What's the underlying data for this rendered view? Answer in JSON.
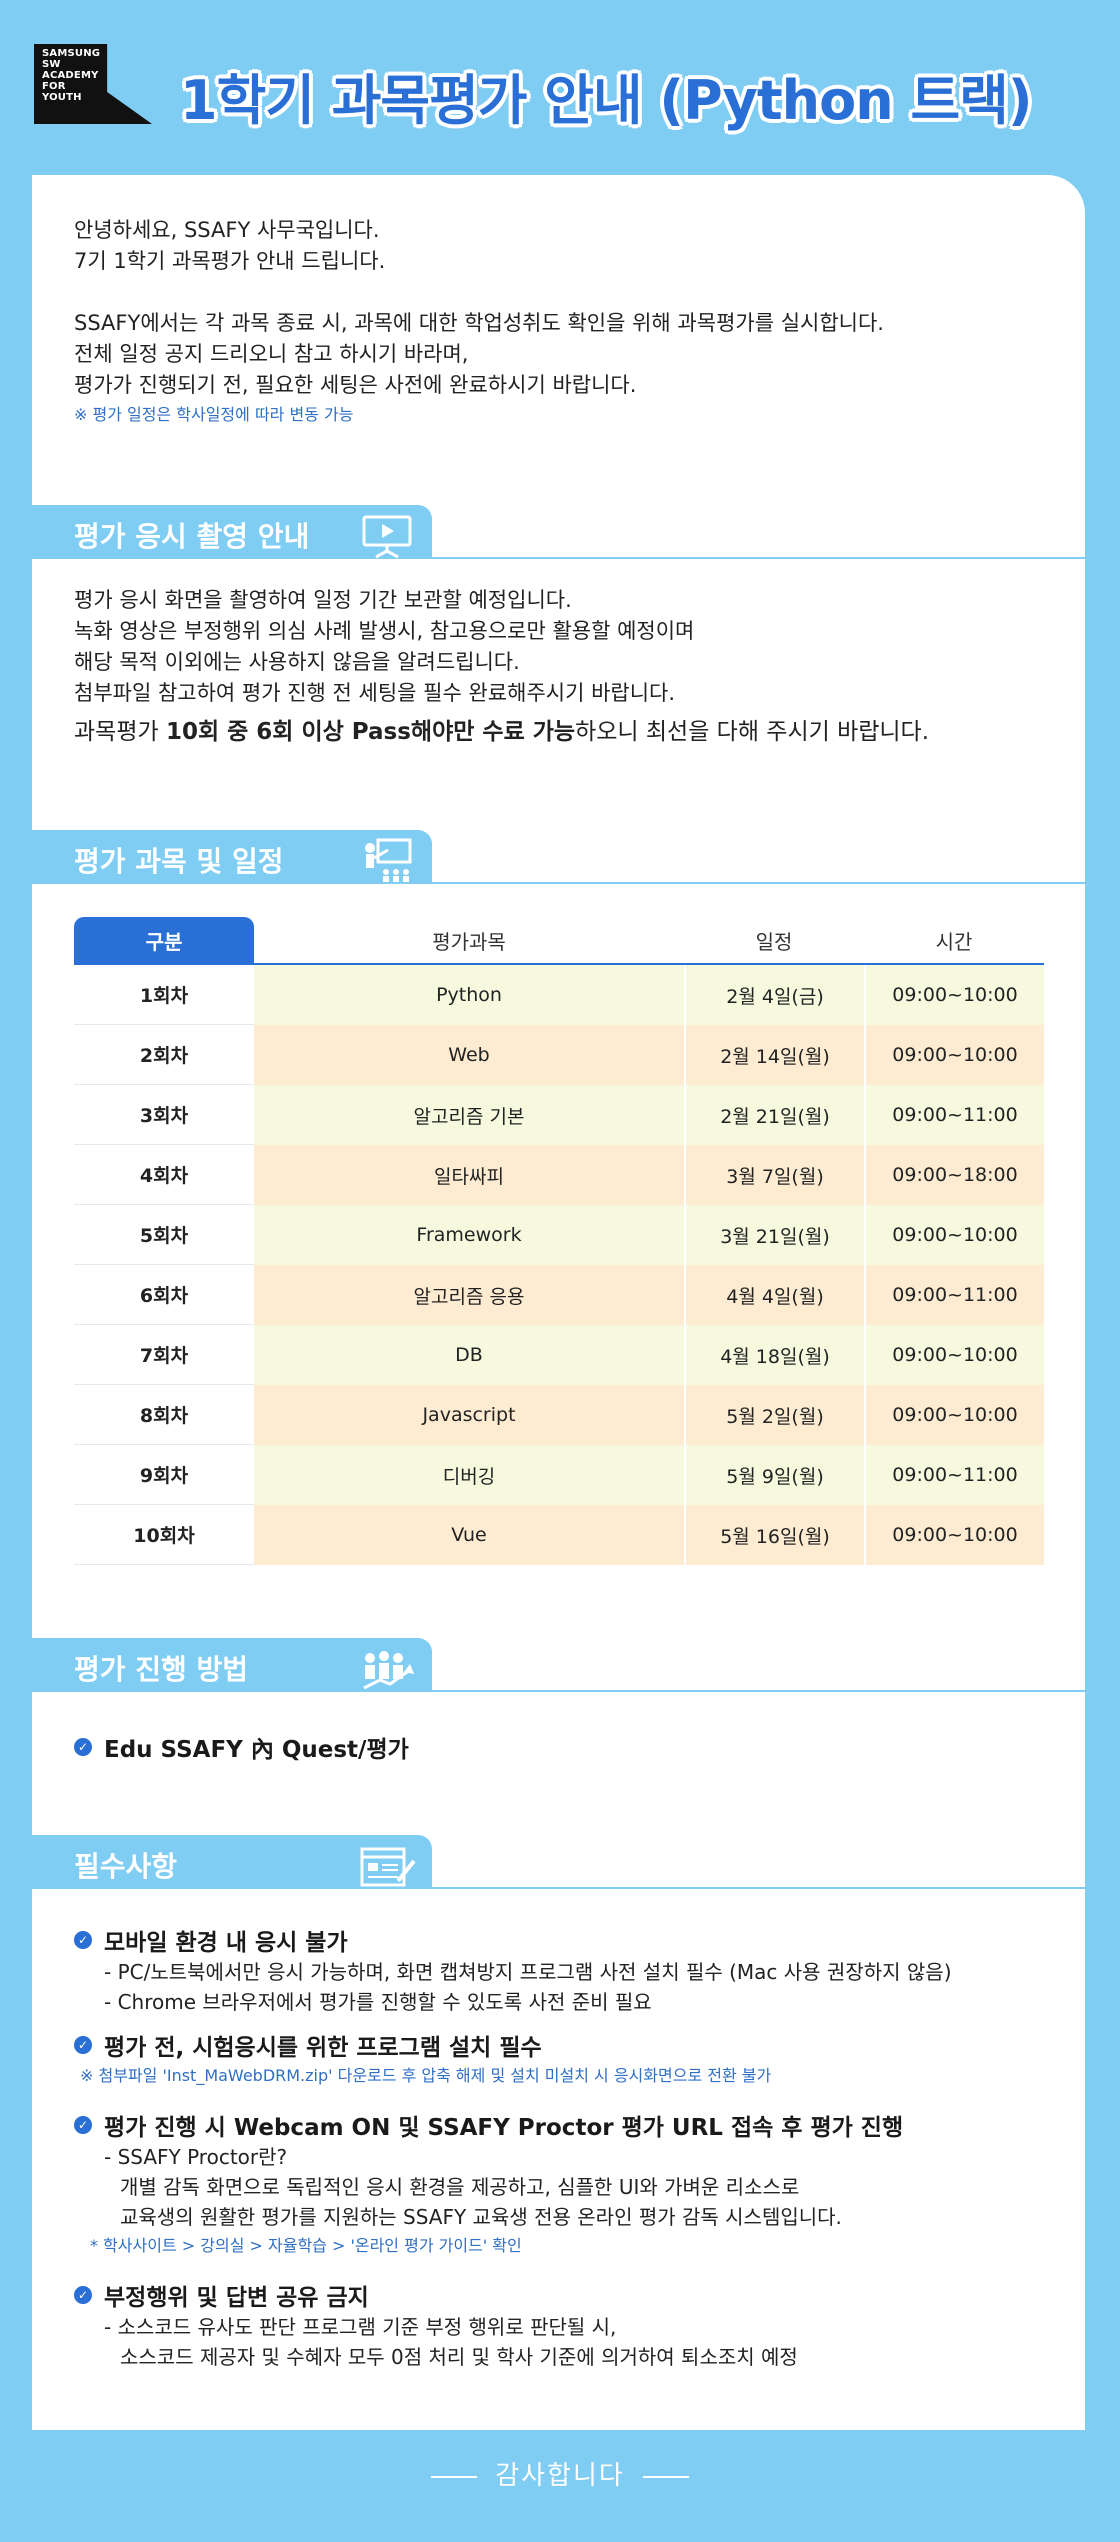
{
  "header": {
    "logo_lines": [
      "SAMSUNG",
      "SW",
      "ACADEMY",
      "FOR",
      "YOUTH"
    ],
    "title": "1학기 과목평가 안내 (Python 트랙)"
  },
  "intro": {
    "line1": "안녕하세요, SSAFY 사무국입니다.",
    "line2": "7기 1학기 과목평가 안내 드립니다.",
    "line3": "SSAFY에서는 각 과목 종료 시, 과목에 대한 학업성취도 확인을 위해 과목평가를 실시합니다.",
    "line4": "전체 일정 공지 드리오니 참고 하시기 바라며,",
    "line5": "평가가 진행되기 전, 필요한 세팅은 사전에 완료하시기 바랍니다.",
    "note": "※ 평가 일정은 학사일정에 따라 변동 가능"
  },
  "recording": {
    "title": "평가 응시 촬영 안내",
    "line1": "평가 응시 화면을 촬영하여 일정 기간 보관할 예정입니다.",
    "line2": "녹화 영상은 부정행위 의심 사례 발생시, 참고용으로만 활용할 예정이며",
    "line3": "해당 목적 이외에는 사용하지 않음을 알려드립니다.",
    "line4": "첨부파일 참고하여 평가 진행 전 세팅을 필수 완료해주시기 바랍니다.",
    "pass_prefix": "과목평가 ",
    "pass_bold": "10회 중 6회 이상 Pass해야만 수료 가능",
    "pass_suffix": "하오니 최선을 다해 주시기 바랍니다."
  },
  "schedule": {
    "title": "평가 과목 및 일정",
    "headers": [
      "구분",
      "평가과목",
      "일정",
      "시간"
    ],
    "rows": [
      [
        "1회차",
        "Python",
        "2월 4일(금)",
        "09:00~10:00"
      ],
      [
        "2회차",
        "Web",
        "2월 14일(월)",
        "09:00~10:00"
      ],
      [
        "3회차",
        "알고리즘 기본",
        "2월 21일(월)",
        "09:00~11:00"
      ],
      [
        "4회차",
        "일타싸피",
        "3월 7일(월)",
        "09:00~18:00"
      ],
      [
        "5회차",
        "Framework",
        "3월 21일(월)",
        "09:00~10:00"
      ],
      [
        "6회차",
        "알고리즘 응용",
        "4월 4일(월)",
        "09:00~11:00"
      ],
      [
        "7회차",
        "DB",
        "4월 18일(월)",
        "09:00~10:00"
      ],
      [
        "8회차",
        "Javascript",
        "5월 2일(월)",
        "09:00~10:00"
      ],
      [
        "9회차",
        "디버깅",
        "5월 9일(월)",
        "09:00~11:00"
      ],
      [
        "10회차",
        "Vue",
        "5월 16일(월)",
        "09:00~10:00"
      ]
    ]
  },
  "method": {
    "title": "평가 진행 방법",
    "item": "Edu SSAFY 內 Quest/평가"
  },
  "required": {
    "title": "필수사항",
    "item1": {
      "title": "모바일 환경 내 응시 불가",
      "sub1": "- PC/노트북에서만 응시 가능하며, 화면 캡쳐방지 프로그램 사전 설치 필수 (Mac 사용 권장하지 않음)",
      "sub2": "- Chrome 브라우저에서 평가를 진행할 수 있도록 사전 준비 필요"
    },
    "item2": {
      "title": "평가 전, 시험응시를 위한 프로그램 설치 필수",
      "note": "※ 첨부파일 'Inst_MaWebDRM.zip' 다운로드 후 압축 해제 및 설치 미설치 시 응시화면으로 전환 불가"
    },
    "item3": {
      "title": "평가 진행 시 Webcam ON 및 SSAFY Proctor 평가 URL 접속 후 평가 진행",
      "sub1": "- SSAFY Proctor란?",
      "sub2": "개별 감독 화면으로 독립적인 응시 환경을 제공하고, 심플한 UI와 가벼운 리소스로",
      "sub3": "교육생의 원활한 평가를 지원하는 SSAFY 교육생 전용 온라인 평가 감독 시스템입니다.",
      "note": "* 학사사이트 > 강의실 > 자율학습 > '온라인 평가 가이드' 확인"
    },
    "item4": {
      "title": "부정행위 및 답변 공유 금지",
      "sub1": "- 소스코드 유사도 판단 프로그램 기준 부정 행위로 판단될 시,",
      "sub2": "소스코드 제공자 및 수혜자 모두 0점 처리 및 학사 기준에 의거하여 퇴소조치 예정"
    }
  },
  "footer": {
    "text": "감사합니다"
  },
  "colors": {
    "background": "#7fcdf2",
    "accent": "#2a6fd6",
    "note": "#2f6fc4",
    "row_odd": "#f6f9de",
    "row_even": "#fdecd2"
  },
  "icons": {
    "section1": "video-presentation-icon",
    "section2": "lecture-icon",
    "section3": "team-growth-icon",
    "section4": "checklist-document-icon",
    "bullet": "check-circle-icon"
  }
}
